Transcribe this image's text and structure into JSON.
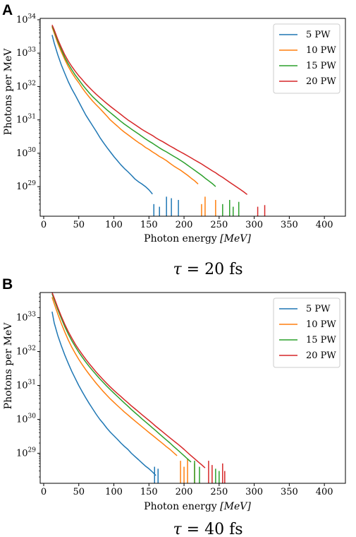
{
  "panels": [
    {
      "letter": "A",
      "caption": {
        "symbol": "τ",
        "rest": " = 20 fs"
      },
      "xlabel": {
        "prefix": "Photon energy ",
        "unit": "[MeV]"
      },
      "ylabel": "Photons per MeV",
      "colors": {
        "5 PW": "#1f77b4",
        "10 PW": "#ff7f0e",
        "15 PW": "#2ca02c",
        "20 PW": "#d62728"
      }
    },
    {
      "letter": "B",
      "caption": {
        "symbol": "τ",
        "rest": " = 40 fs"
      },
      "xlabel": {
        "prefix": "Photon energy ",
        "unit": "[MeV]"
      },
      "ylabel": "Photons per MeV",
      "colors": {
        "5 PW": "#1f77b4",
        "10 PW": "#ff7f0e",
        "15 PW": "#2ca02c",
        "20 PW": "#d62728"
      }
    }
  ],
  "chart_data": [
    {
      "type": "line",
      "yscale": "log",
      "xlim": [
        -5,
        430
      ],
      "ylim": [
        1.3e+28,
        1.1e+34
      ],
      "xticks": [
        0,
        50,
        100,
        150,
        200,
        250,
        300,
        350,
        400
      ],
      "yticks": [
        29,
        30,
        31,
        32,
        33,
        34
      ],
      "legend": "top-right",
      "series": [
        {
          "name": "5 PW",
          "x": [
            12,
            15,
            20,
            25,
            30,
            35,
            40,
            45,
            50,
            55,
            60,
            65,
            70,
            75,
            80,
            85,
            90,
            95,
            100,
            105,
            110,
            115,
            120,
            125,
            130,
            135,
            140,
            145,
            150,
            155
          ],
          "y": [
            3.5e+33,
            2e+33,
            9e+32,
            4.5e+32,
            2.5e+32,
            1.4e+32,
            8.5e+31,
            5.5e+31,
            3.5e+31,
            2.2e+31,
            1.4e+31,
            9.5e+30,
            6.5e+30,
            4.5e+30,
            3e+30,
            2.1e+30,
            1.5e+30,
            1.1e+30,
            8e+29,
            6e+29,
            4.5e+29,
            3.5e+29,
            2.8e+29,
            2.2e+29,
            1.7e+29,
            1.4e+29,
            1.2e+29,
            1e+29,
            8e+28,
            6e+28
          ],
          "spikes": [
            [
              157,
              3e+28
            ],
            [
              165,
              2.5e+28
            ],
            [
              175,
              5e+28
            ],
            [
              182,
              4.5e+28
            ],
            [
              192,
              4e+28
            ]
          ]
        },
        {
          "name": "10 PW",
          "x": [
            12,
            15,
            20,
            25,
            30,
            35,
            40,
            45,
            50,
            55,
            60,
            65,
            70,
            75,
            80,
            85,
            90,
            95,
            100,
            105,
            110,
            115,
            120,
            125,
            130,
            135,
            140,
            145,
            150,
            155,
            160,
            165,
            170,
            175,
            180,
            185,
            190,
            195,
            200,
            205,
            210,
            215,
            220
          ],
          "y": [
            6e+33,
            4e+33,
            2e+33,
            1.1e+33,
            6.5e+32,
            4e+32,
            2.6e+32,
            1.8e+32,
            1.3e+32,
            9e+31,
            6.5e+31,
            4.8e+31,
            3.6e+31,
            2.8e+31,
            2.2e+31,
            1.7e+31,
            1.3e+31,
            1e+31,
            8e+30,
            6.5e+30,
            5.2e+30,
            4.3e+30,
            3.6e+30,
            3e+30,
            2.5e+30,
            2.1e+30,
            1.8e+30,
            1.5e+30,
            1.3e+30,
            1.1e+30,
            9.5e+29,
            8e+29,
            7e+29,
            6e+29,
            5e+29,
            4.2e+29,
            3.6e+29,
            3.1e+29,
            2.6e+29,
            2.2e+29,
            1.8e+29,
            1.5e+29,
            1.2e+29
          ],
          "spikes": [
            [
              225,
              3e+28
            ],
            [
              230,
              5e+28
            ],
            [
              245,
              4e+28
            ]
          ]
        },
        {
          "name": "15 PW",
          "x": [
            12,
            15,
            20,
            25,
            30,
            35,
            40,
            45,
            50,
            55,
            60,
            65,
            70,
            75,
            80,
            85,
            90,
            95,
            100,
            105,
            110,
            115,
            120,
            125,
            130,
            135,
            140,
            145,
            150,
            155,
            160,
            165,
            170,
            175,
            180,
            185,
            190,
            195,
            200,
            205,
            210,
            215,
            220,
            225,
            230,
            235,
            240,
            245
          ],
          "y": [
            6.5e+33,
            4.5e+33,
            2.3e+33,
            1.3e+33,
            7.5e+32,
            4.8e+32,
            3.2e+32,
            2.2e+32,
            1.6e+32,
            1.15e+32,
            8.5e+31,
            6.4e+31,
            4.9e+31,
            3.9e+31,
            3.1e+31,
            2.5e+31,
            2e+31,
            1.65e+31,
            1.35e+31,
            1.1e+31,
            9e+30,
            7.5e+30,
            6.3e+30,
            5.3e+30,
            4.5e+30,
            3.8e+30,
            3.2e+30,
            2.7e+30,
            2.3e+30,
            2e+30,
            1.7e+30,
            1.45e+30,
            1.25e+30,
            1.1e+30,
            9.5e+29,
            8.2e+29,
            7.1e+29,
            6.1e+29,
            5.2e+29,
            4.4e+29,
            3.7e+29,
            3.1e+29,
            2.6e+29,
            2.2e+29,
            1.8e+29,
            1.5e+29,
            1.25e+29,
            1e+29
          ],
          "spikes": [
            [
              255,
              3e+28
            ],
            [
              265,
              4e+28
            ],
            [
              270,
              2.5e+28
            ],
            [
              278,
              3.5e+28
            ]
          ]
        },
        {
          "name": "20 PW",
          "x": [
            12,
            15,
            20,
            25,
            30,
            35,
            40,
            45,
            50,
            55,
            60,
            65,
            70,
            75,
            80,
            85,
            90,
            95,
            100,
            105,
            110,
            115,
            120,
            125,
            130,
            135,
            140,
            145,
            150,
            155,
            160,
            165,
            170,
            175,
            180,
            185,
            190,
            195,
            200,
            205,
            210,
            215,
            220,
            225,
            230,
            235,
            240,
            245,
            250,
            255,
            260,
            265,
            270,
            275,
            280,
            285,
            290
          ],
          "y": [
            7e+33,
            5e+33,
            2.6e+33,
            1.5e+33,
            9e+32,
            5.8e+32,
            4e+32,
            2.85e+32,
            2.1e+32,
            1.6e+32,
            1.2e+32,
            9.3e+31,
            7.3e+31,
            5.8e+31,
            4.7e+31,
            3.8e+31,
            3.1e+31,
            2.55e+31,
            2.1e+31,
            1.75e+31,
            1.45e+31,
            1.2e+31,
            1e+31,
            8.5e+30,
            7.2e+30,
            6.1e+30,
            5.2e+30,
            4.5e+30,
            3.9e+30,
            3.4e+30,
            2.9e+30,
            2.5e+30,
            2.2e+30,
            1.9e+30,
            1.65e+30,
            1.45e+30,
            1.25e+30,
            1.1e+30,
            9.6e+29,
            8.4e+29,
            7.3e+29,
            6.3e+29,
            5.5e+29,
            4.8e+29,
            4.1e+29,
            3.5e+29,
            3e+29,
            2.6e+29,
            2.2e+29,
            1.9e+29,
            1.6e+29,
            1.35e+29,
            1.15e+29,
            9.8e+28,
            8.3e+28,
            7e+28,
            5.8e+28
          ],
          "spikes": [
            [
              305,
              2.5e+28
            ],
            [
              315,
              2.8e+28
            ]
          ]
        }
      ]
    },
    {
      "type": "line",
      "yscale": "log",
      "xlim": [
        -5,
        430
      ],
      "ylim": [
        1.3e+28,
        5.5e+33
      ],
      "xticks": [
        0,
        50,
        100,
        150,
        200,
        250,
        300,
        350,
        400
      ],
      "yticks": [
        29,
        30,
        31,
        32,
        33
      ],
      "legend": "top-right",
      "series": [
        {
          "name": "5 PW",
          "x": [
            12,
            15,
            20,
            25,
            30,
            35,
            40,
            45,
            50,
            55,
            60,
            65,
            70,
            75,
            80,
            85,
            90,
            95,
            100,
            105,
            110,
            115,
            120,
            125,
            130,
            135,
            140,
            145,
            150,
            155,
            160
          ],
          "y": [
            1.5e+33,
            7e+32,
            3e+32,
            1.5e+32,
            8e+31,
            4.5e+31,
            2.6e+31,
            1.6e+31,
            1e+31,
            6.5e+30,
            4.3e+30,
            2.9e+30,
            2e+30,
            1.4e+30,
            1e+30,
            7.5e+29,
            5.5e+29,
            4.2e+29,
            3.3e+29,
            2.6e+29,
            2e+29,
            1.6e+29,
            1.3e+29,
            1e+29,
            8e+28,
            6.5e+28,
            5.2e+28,
            4.2e+28,
            3.5e+28,
            2.8e+28,
            2.2e+28
          ],
          "spikes": [
            [
              158,
              4e+28
            ],
            [
              163,
              3.5e+28
            ]
          ]
        },
        {
          "name": "10 PW",
          "x": [
            12,
            15,
            20,
            25,
            30,
            35,
            40,
            45,
            50,
            55,
            60,
            65,
            70,
            75,
            80,
            85,
            90,
            95,
            100,
            105,
            110,
            115,
            120,
            125,
            130,
            135,
            140,
            145,
            150,
            155,
            160,
            165,
            170,
            175,
            180,
            185,
            190
          ],
          "y": [
            4e+33,
            2.6e+33,
            1.3e+33,
            6.8e+32,
            3.8e+32,
            2.2e+32,
            1.35e+32,
            8.8e+31,
            5.9e+31,
            4.1e+31,
            2.9e+31,
            2.1e+31,
            1.55e+31,
            1.15e+31,
            8.7e+30,
            6.6e+30,
            5.1e+30,
            4e+30,
            3.2e+30,
            2.55e+30,
            2.05e+30,
            1.65e+30,
            1.35e+30,
            1.1e+30,
            9e+29,
            7.4e+29,
            6.1e+29,
            5e+29,
            4.1e+29,
            3.4e+29,
            2.8e+29,
            2.3e+29,
            1.9e+29,
            1.55e+29,
            1.3e+29,
            1.05e+29,
            8.5e+28
          ],
          "spikes": [
            [
              195,
              6e+28
            ],
            [
              200,
              4e+28
            ],
            [
              205,
              7e+28
            ],
            [
              215,
              5e+28
            ]
          ]
        },
        {
          "name": "15 PW",
          "x": [
            12,
            15,
            20,
            25,
            30,
            35,
            40,
            45,
            50,
            55,
            60,
            65,
            70,
            75,
            80,
            85,
            90,
            95,
            100,
            105,
            110,
            115,
            120,
            125,
            130,
            135,
            140,
            145,
            150,
            155,
            160,
            165,
            170,
            175,
            180,
            185,
            190,
            195,
            200,
            205,
            210
          ],
          "y": [
            5e+33,
            3.4e+33,
            1.75e+33,
            9.6e+32,
            5.5e+32,
            3.3e+32,
            2.1e+32,
            1.4e+32,
            9.6e+31,
            6.8e+31,
            4.9e+31,
            3.6e+31,
            2.7e+31,
            2.05e+31,
            1.57e+31,
            1.22e+31,
            9.5e+30,
            7.5e+30,
            5.95e+30,
            4.75e+30,
            3.8e+30,
            3.05e+30,
            2.45e+30,
            1.95e+30,
            1.58e+30,
            1.28e+30,
            1.04e+30,
            8.5e+29,
            6.9e+29,
            5.6e+29,
            4.6e+29,
            3.7e+29,
            3e+29,
            2.45e+29,
            2e+29,
            1.6e+29,
            1.3e+29,
            1.05e+29,
            8.5e+28,
            6.8e+28,
            5.5e+28
          ],
          "spikes": [
            [
              215,
              6e+28
            ],
            [
              222,
              4e+28
            ],
            [
              245,
              3.5e+28
            ],
            [
              250,
              3e+28
            ]
          ]
        },
        {
          "name": "20 PW",
          "x": [
            12,
            15,
            20,
            25,
            30,
            35,
            40,
            45,
            50,
            55,
            60,
            65,
            70,
            75,
            80,
            85,
            90,
            95,
            100,
            105,
            110,
            115,
            120,
            125,
            130,
            135,
            140,
            145,
            150,
            155,
            160,
            165,
            170,
            175,
            180,
            185,
            190,
            195,
            200,
            205,
            210,
            215,
            220,
            225,
            230
          ],
          "y": [
            5.5e+33,
            3.8e+33,
            2e+33,
            1.1e+33,
            6.4e+32,
            3.9e+32,
            2.5e+32,
            1.65e+32,
            1.15e+32,
            8.2e+31,
            5.9e+31,
            4.35e+31,
            3.25e+31,
            2.45e+31,
            1.88e+31,
            1.46e+31,
            1.14e+31,
            9e+30,
            7.2e+30,
            5.8e+30,
            4.7e+30,
            3.8e+30,
            3.1e+30,
            2.5e+30,
            2.05e+30,
            1.68e+30,
            1.38e+30,
            1.13e+30,
            9.3e+29,
            7.6e+29,
            6.2e+29,
            5.1e+29,
            4.2e+29,
            3.45e+29,
            2.85e+29,
            2.35e+29,
            1.95e+29,
            1.6e+29,
            1.3e+29,
            1.05e+29,
            8.5e+28,
            6.9e+28,
            5.6e+28,
            4.6e+28,
            3.7e+28
          ],
          "spikes": [
            [
              235,
              6e+28
            ],
            [
              240,
              4.5e+28
            ],
            [
              255,
              5e+28
            ],
            [
              258,
              3e+28
            ]
          ]
        }
      ]
    }
  ]
}
